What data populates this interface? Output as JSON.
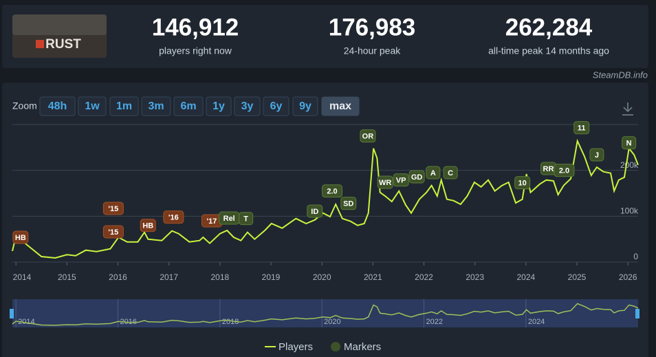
{
  "header": {
    "logo_text": "RUST",
    "stats": [
      {
        "value": "146,912",
        "label": "players right now"
      },
      {
        "value": "176,983",
        "label": "24-hour peak"
      },
      {
        "value": "262,284",
        "label": "all-time peak 14 months ago"
      }
    ],
    "credit": "SteamDB.info"
  },
  "zoom": {
    "label": "Zoom",
    "buttons": [
      "48h",
      "1w",
      "1m",
      "3m",
      "6m",
      "1y",
      "3y",
      "6y",
      "9y",
      "max"
    ],
    "active": 9
  },
  "chart_data": {
    "type": "line",
    "x": [
      2013.93,
      2014.0,
      2014.5,
      2014.77,
      2015.0,
      2015.17,
      2015.37,
      2015.58,
      2015.85,
      2016.01,
      2016.18,
      2016.39,
      2016.52,
      2016.59,
      2016.86,
      2017.06,
      2017.19,
      2017.4,
      2017.6,
      2017.67,
      2017.8,
      2018.0,
      2018.14,
      2018.27,
      2018.41,
      2018.54,
      2018.68,
      2018.88,
      2019.01,
      2019.22,
      2019.49,
      2019.69,
      2019.86,
      2020.02,
      2020.16,
      2020.27,
      2020.4,
      2020.56,
      2020.7,
      2020.83,
      2020.91,
      2021.01,
      2021.08,
      2021.14,
      2021.24,
      2021.37,
      2021.51,
      2021.64,
      2021.75,
      2021.91,
      2022.05,
      2022.15,
      2022.26,
      2022.34,
      2022.45,
      2022.58,
      2022.72,
      2022.85,
      2022.99,
      2023.12,
      2023.26,
      2023.39,
      2023.53,
      2023.66,
      2023.8,
      2023.93,
      2024.01,
      2024.09,
      2024.27,
      2024.4,
      2024.54,
      2024.63,
      2024.74,
      2024.88,
      2025.01,
      2025.15,
      2025.28,
      2025.39,
      2025.52,
      2025.66,
      2025.73,
      2025.82,
      2025.93,
      2026.02,
      2026.12,
      2026.2
    ],
    "series": [
      {
        "name": "Players",
        "color": "#c9f53b",
        "values": [
          24000,
          57000,
          12000,
          9000,
          16000,
          14000,
          26000,
          23000,
          29000,
          54000,
          44000,
          44000,
          65000,
          50000,
          47000,
          68000,
          62000,
          44000,
          47000,
          54000,
          41000,
          62000,
          69000,
          54000,
          47000,
          65000,
          50000,
          69000,
          84000,
          74000,
          95000,
          84000,
          92000,
          107000,
          99000,
          126000,
          95000,
          89000,
          80000,
          84000,
          107000,
          248000,
          227000,
          152000,
          144000,
          132000,
          155000,
          125000,
          107000,
          137000,
          152000,
          167000,
          144000,
          179000,
          137000,
          134000,
          126000,
          144000,
          174000,
          164000,
          179000,
          155000,
          167000,
          174000,
          129000,
          137000,
          192000,
          152000,
          170000,
          179000,
          177000,
          147000,
          167000,
          182000,
          264000,
          230000,
          189000,
          207000,
          197000,
          194000,
          155000,
          179000,
          185000,
          248000,
          234000,
          212000
        ]
      }
    ],
    "markers": {
      "name": "Markers",
      "color": "#3d5228",
      "points": [
        {
          "label": "HB",
          "x": 2014.09,
          "y": 54000,
          "color": "#7b3a1c"
        },
        {
          "label": "'15",
          "x": 2015.91,
          "y": 117000,
          "color": "#7b3a1c"
        },
        {
          "label": "'15",
          "x": 2015.91,
          "y": 66000,
          "color": "#7b3a1c"
        },
        {
          "label": "HB",
          "x": 2016.59,
          "y": 80000,
          "color": "#7b3a1c"
        },
        {
          "label": "'16",
          "x": 2017.09,
          "y": 98000,
          "color": "#7b3a1c"
        },
        {
          "label": "'17",
          "x": 2017.84,
          "y": 90000,
          "color": "#7b3a1c"
        },
        {
          "label": "Rel",
          "x": 2018.18,
          "y": 96000,
          "color": "#3d5228"
        },
        {
          "label": "T",
          "x": 2018.51,
          "y": 95000,
          "color": "#3d5228"
        },
        {
          "label": "ID",
          "x": 2019.86,
          "y": 111000,
          "color": "#3d5228"
        },
        {
          "label": "2.0",
          "x": 2020.2,
          "y": 155000,
          "color": "#3d5228"
        },
        {
          "label": "SD",
          "x": 2020.52,
          "y": 128000,
          "color": "#3d5228"
        },
        {
          "label": "OR",
          "x": 2020.9,
          "y": 275000,
          "color": "#3d5228"
        },
        {
          "label": "WR",
          "x": 2021.24,
          "y": 174000,
          "color": "#3d5228"
        },
        {
          "label": "VP",
          "x": 2021.55,
          "y": 179000,
          "color": "#3d5228"
        },
        {
          "label": "GD",
          "x": 2021.86,
          "y": 186000,
          "color": "#3d5228"
        },
        {
          "label": "A",
          "x": 2022.18,
          "y": 195000,
          "color": "#3d5228"
        },
        {
          "label": "C",
          "x": 2022.52,
          "y": 195000,
          "color": "#3d5228"
        },
        {
          "label": "10",
          "x": 2023.93,
          "y": 173000,
          "color": "#3d5228"
        },
        {
          "label": "RR",
          "x": 2024.44,
          "y": 204000,
          "color": "#3d5228"
        },
        {
          "label": "2.0",
          "x": 2024.75,
          "y": 200000,
          "color": "#3d5228"
        },
        {
          "label": "11",
          "x": 2025.09,
          "y": 293000,
          "color": "#3d5228"
        },
        {
          "label": "J",
          "x": 2025.39,
          "y": 234000,
          "color": "#3d5228"
        },
        {
          "label": "N",
          "x": 2026.02,
          "y": 260000,
          "color": "#3d5228"
        }
      ]
    },
    "xlim": [
      2013.93,
      2026.2
    ],
    "xticks": [
      2014,
      2015,
      2016,
      2017,
      2018,
      2019,
      2020,
      2021,
      2022,
      2023,
      2024,
      2025,
      2026
    ],
    "ylim": [
      0,
      300000
    ],
    "yticks": [
      0,
      {
        "value": 100000,
        "label": "100k"
      },
      {
        "value": 200000,
        "label": "200k"
      }
    ],
    "grid": true,
    "navigator": {
      "xticks": [
        2014,
        2016,
        2018,
        2020,
        2022,
        2024
      ]
    }
  }
}
